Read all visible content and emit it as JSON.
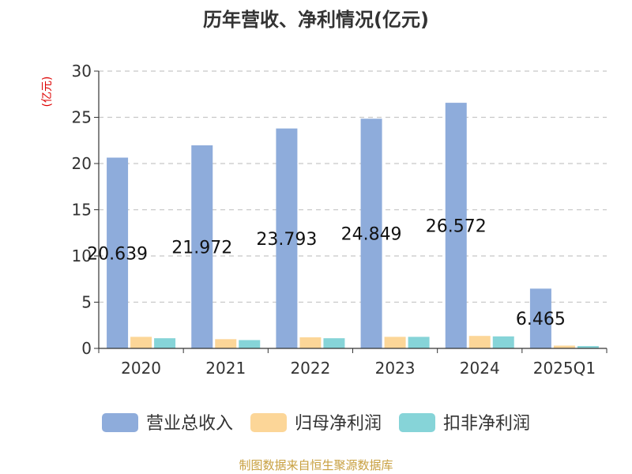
{
  "title": "历年营收、净利情况(亿元)",
  "source_text": "制图数据来自恒生聚源数据库",
  "colors": {
    "source": "#c8a040",
    "unit": "#dd0000"
  },
  "chart_data": {
    "type": "bar",
    "title": "历年营收、净利情况(亿元)",
    "ylabel": "(亿元)",
    "xlabel": "",
    "ylim": [
      0,
      30
    ],
    "yticks": [
      0,
      5,
      10,
      15,
      20,
      25,
      30
    ],
    "grid": true,
    "legend_position": "bottom",
    "categories": [
      "2020",
      "2021",
      "2022",
      "2023",
      "2024",
      "2025Q1"
    ],
    "series": [
      {
        "name": "营业总收入",
        "color": "#8eacdb",
        "values": [
          20.639,
          21.972,
          23.793,
          24.849,
          26.572,
          6.465
        ],
        "labels": [
          "20.639",
          "21.972",
          "23.793",
          "24.849",
          "26.572",
          "6.465"
        ]
      },
      {
        "name": "归母净利润",
        "color": "#fcd698",
        "values": [
          1.25,
          1.0,
          1.2,
          1.25,
          1.35,
          0.3
        ]
      },
      {
        "name": "扣非净利润",
        "color": "#86d4d8",
        "values": [
          1.1,
          0.9,
          1.1,
          1.25,
          1.3,
          0.25
        ]
      }
    ]
  }
}
